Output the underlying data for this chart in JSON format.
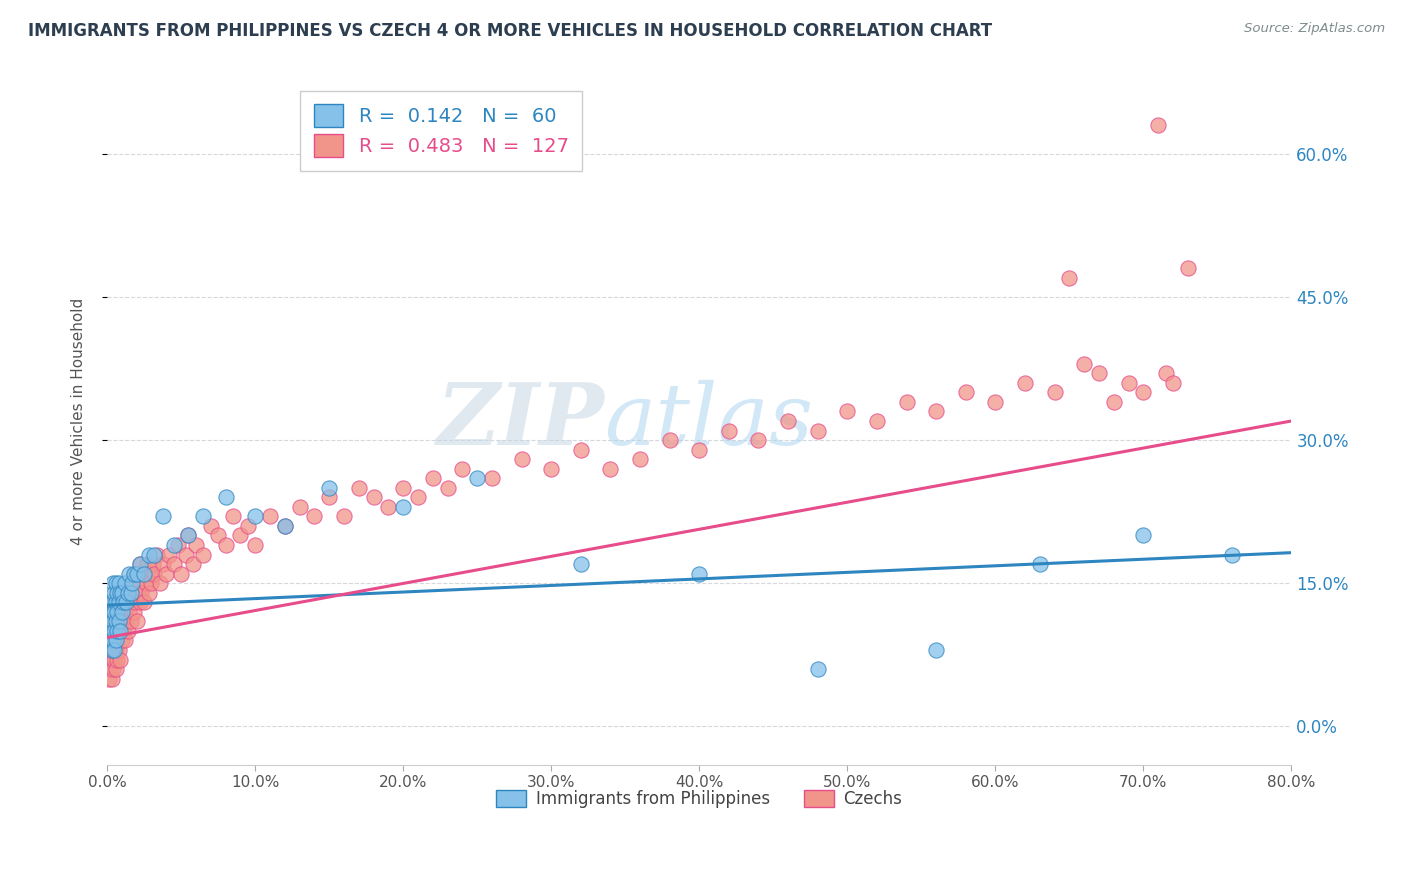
{
  "title": "IMMIGRANTS FROM PHILIPPINES VS CZECH 4 OR MORE VEHICLES IN HOUSEHOLD CORRELATION CHART",
  "source_text": "Source: ZipAtlas.com",
  "ylabel": "4 or more Vehicles in Household",
  "xlim": [
    0.0,
    0.8
  ],
  "ylim": [
    -0.04,
    0.68
  ],
  "xtick_values": [
    0.0,
    0.1,
    0.2,
    0.3,
    0.4,
    0.5,
    0.6,
    0.7,
    0.8
  ],
  "xtick_labels": [
    "0.0%",
    "10.0%",
    "20.0%",
    "30.0%",
    "40.0%",
    "50.0%",
    "60.0%",
    "70.0%",
    "80.0%"
  ],
  "ytick_values": [
    0.0,
    0.15,
    0.3,
    0.45,
    0.6
  ],
  "ytick_labels": [
    "0.0%",
    "15.0%",
    "30.0%",
    "45.0%",
    "60.0%"
  ],
  "philippines_color": "#85c1e9",
  "czech_color": "#f1948a",
  "philippines_line_color": "#2e86c1",
  "czech_line_color": "#e74c8b",
  "philippines_R": 0.142,
  "philippines_N": 60,
  "czech_R": 0.483,
  "czech_N": 127,
  "watermark_text": "ZIPatlas",
  "background_color": "#ffffff",
  "grid_color": "#d5d8dc",
  "title_color": "#2c3e50",
  "source_color": "#7f8c8d",
  "right_axis_color": "#2e86c1",
  "legend_top_labels": [
    "R =  0.142   N =  60",
    "R =  0.483   N =  127"
  ],
  "legend_bottom_labels": [
    "Immigrants from Philippines",
    "Czechs"
  ],
  "philippines_x": [
    0.001,
    0.001,
    0.002,
    0.002,
    0.002,
    0.003,
    0.003,
    0.003,
    0.004,
    0.004,
    0.004,
    0.004,
    0.005,
    0.005,
    0.005,
    0.005,
    0.006,
    0.006,
    0.006,
    0.006,
    0.007,
    0.007,
    0.007,
    0.008,
    0.008,
    0.008,
    0.009,
    0.009,
    0.01,
    0.01,
    0.011,
    0.012,
    0.013,
    0.014,
    0.015,
    0.016,
    0.017,
    0.018,
    0.02,
    0.022,
    0.025,
    0.028,
    0.032,
    0.038,
    0.045,
    0.055,
    0.065,
    0.08,
    0.1,
    0.12,
    0.15,
    0.2,
    0.25,
    0.32,
    0.4,
    0.48,
    0.56,
    0.63,
    0.7,
    0.76
  ],
  "philippines_y": [
    0.1,
    0.12,
    0.09,
    0.11,
    0.13,
    0.08,
    0.1,
    0.12,
    0.09,
    0.11,
    0.13,
    0.15,
    0.08,
    0.1,
    0.12,
    0.14,
    0.09,
    0.11,
    0.13,
    0.15,
    0.1,
    0.12,
    0.14,
    0.11,
    0.13,
    0.15,
    0.1,
    0.14,
    0.12,
    0.14,
    0.13,
    0.15,
    0.13,
    0.14,
    0.16,
    0.14,
    0.15,
    0.16,
    0.16,
    0.17,
    0.16,
    0.18,
    0.18,
    0.22,
    0.19,
    0.2,
    0.22,
    0.24,
    0.22,
    0.21,
    0.25,
    0.23,
    0.26,
    0.17,
    0.16,
    0.06,
    0.08,
    0.17,
    0.2,
    0.18
  ],
  "czech_x": [
    0.001,
    0.001,
    0.002,
    0.002,
    0.002,
    0.003,
    0.003,
    0.003,
    0.004,
    0.004,
    0.004,
    0.005,
    0.005,
    0.005,
    0.005,
    0.006,
    0.006,
    0.006,
    0.006,
    0.007,
    0.007,
    0.007,
    0.007,
    0.008,
    0.008,
    0.008,
    0.009,
    0.009,
    0.009,
    0.01,
    0.01,
    0.01,
    0.011,
    0.011,
    0.012,
    0.012,
    0.013,
    0.013,
    0.014,
    0.014,
    0.015,
    0.015,
    0.016,
    0.016,
    0.017,
    0.018,
    0.018,
    0.019,
    0.02,
    0.02,
    0.021,
    0.022,
    0.022,
    0.023,
    0.024,
    0.025,
    0.026,
    0.027,
    0.028,
    0.029,
    0.03,
    0.031,
    0.032,
    0.034,
    0.036,
    0.038,
    0.04,
    0.042,
    0.045,
    0.048,
    0.05,
    0.053,
    0.055,
    0.058,
    0.06,
    0.065,
    0.07,
    0.075,
    0.08,
    0.085,
    0.09,
    0.095,
    0.1,
    0.11,
    0.12,
    0.13,
    0.14,
    0.15,
    0.16,
    0.17,
    0.18,
    0.19,
    0.2,
    0.21,
    0.22,
    0.23,
    0.24,
    0.26,
    0.28,
    0.3,
    0.32,
    0.34,
    0.36,
    0.38,
    0.4,
    0.42,
    0.44,
    0.46,
    0.48,
    0.5,
    0.52,
    0.54,
    0.56,
    0.58,
    0.6,
    0.62,
    0.64,
    0.65,
    0.66,
    0.67,
    0.68,
    0.69,
    0.7,
    0.71,
    0.715,
    0.72,
    0.73
  ],
  "czech_y": [
    0.05,
    0.08,
    0.06,
    0.09,
    0.11,
    0.05,
    0.07,
    0.1,
    0.06,
    0.08,
    0.12,
    0.07,
    0.09,
    0.11,
    0.13,
    0.06,
    0.08,
    0.11,
    0.13,
    0.07,
    0.1,
    0.12,
    0.14,
    0.08,
    0.1,
    0.13,
    0.07,
    0.11,
    0.14,
    0.09,
    0.11,
    0.14,
    0.1,
    0.13,
    0.09,
    0.12,
    0.11,
    0.14,
    0.1,
    0.13,
    0.12,
    0.15,
    0.11,
    0.14,
    0.13,
    0.12,
    0.16,
    0.13,
    0.11,
    0.15,
    0.14,
    0.13,
    0.17,
    0.14,
    0.16,
    0.13,
    0.15,
    0.17,
    0.14,
    0.16,
    0.15,
    0.17,
    0.16,
    0.18,
    0.15,
    0.17,
    0.16,
    0.18,
    0.17,
    0.19,
    0.16,
    0.18,
    0.2,
    0.17,
    0.19,
    0.18,
    0.21,
    0.2,
    0.19,
    0.22,
    0.2,
    0.21,
    0.19,
    0.22,
    0.21,
    0.23,
    0.22,
    0.24,
    0.22,
    0.25,
    0.24,
    0.23,
    0.25,
    0.24,
    0.26,
    0.25,
    0.27,
    0.26,
    0.28,
    0.27,
    0.29,
    0.27,
    0.28,
    0.3,
    0.29,
    0.31,
    0.3,
    0.32,
    0.31,
    0.33,
    0.32,
    0.34,
    0.33,
    0.35,
    0.34,
    0.36,
    0.35,
    0.47,
    0.38,
    0.37,
    0.34,
    0.36,
    0.35,
    0.63,
    0.37,
    0.36,
    0.48
  ]
}
